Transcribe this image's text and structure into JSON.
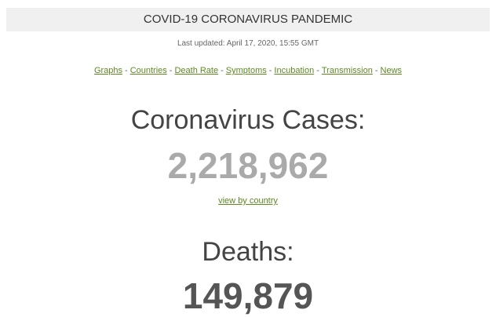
{
  "header": {
    "title": "COVID-19 CORONAVIRUS PANDEMIC",
    "updated": "Last updated: April 17, 2020, 15:55 GMT"
  },
  "nav": {
    "links": [
      "Graphs",
      "Countries",
      "Death Rate",
      "Symptoms",
      "Incubation",
      "Transmission",
      "News"
    ],
    "separator": "-"
  },
  "cases": {
    "label": "Coronavirus Cases:",
    "value": "2,218,962",
    "link": "view by country"
  },
  "deaths": {
    "label": "Deaths:",
    "value": "149,879"
  }
}
